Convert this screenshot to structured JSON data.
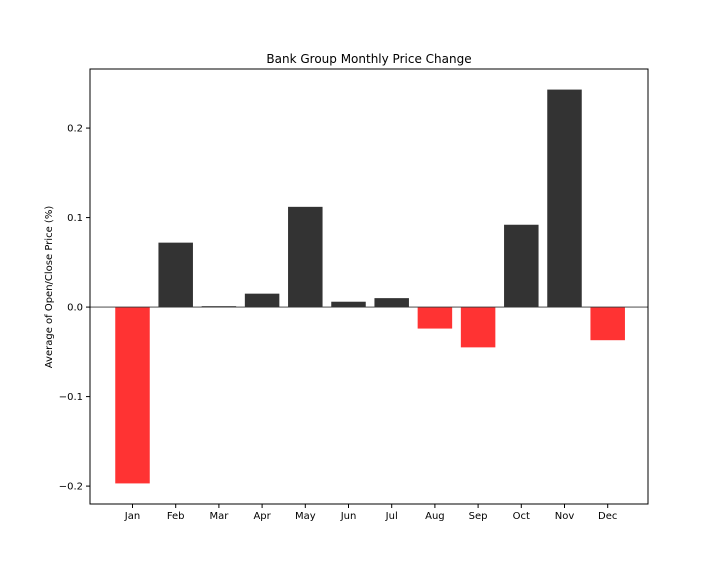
{
  "chart_data": {
    "type": "bar",
    "title": "Bank Group Monthly Price Change",
    "xlabel": "",
    "ylabel": "Average of Open/Close Price (%)",
    "categories": [
      "Jan",
      "Feb",
      "Mar",
      "Apr",
      "May",
      "Jun",
      "Jul",
      "Aug",
      "Sep",
      "Oct",
      "Nov",
      "Dec"
    ],
    "values": [
      -0.197,
      0.072,
      0.001,
      0.015,
      0.112,
      0.006,
      0.01,
      -0.024,
      -0.045,
      0.092,
      0.243,
      -0.037
    ],
    "ylim": [
      -0.22,
      0.266
    ],
    "yticks": [
      -0.2,
      -0.1,
      0.0,
      0.1,
      0.2
    ],
    "ytick_labels": [
      "−0.2",
      "−0.1",
      "0.0",
      "0.1",
      "0.2"
    ],
    "grid": false,
    "colors": {
      "positive": "#333333",
      "negative": "#ff3333",
      "baseline": "#333333"
    }
  }
}
